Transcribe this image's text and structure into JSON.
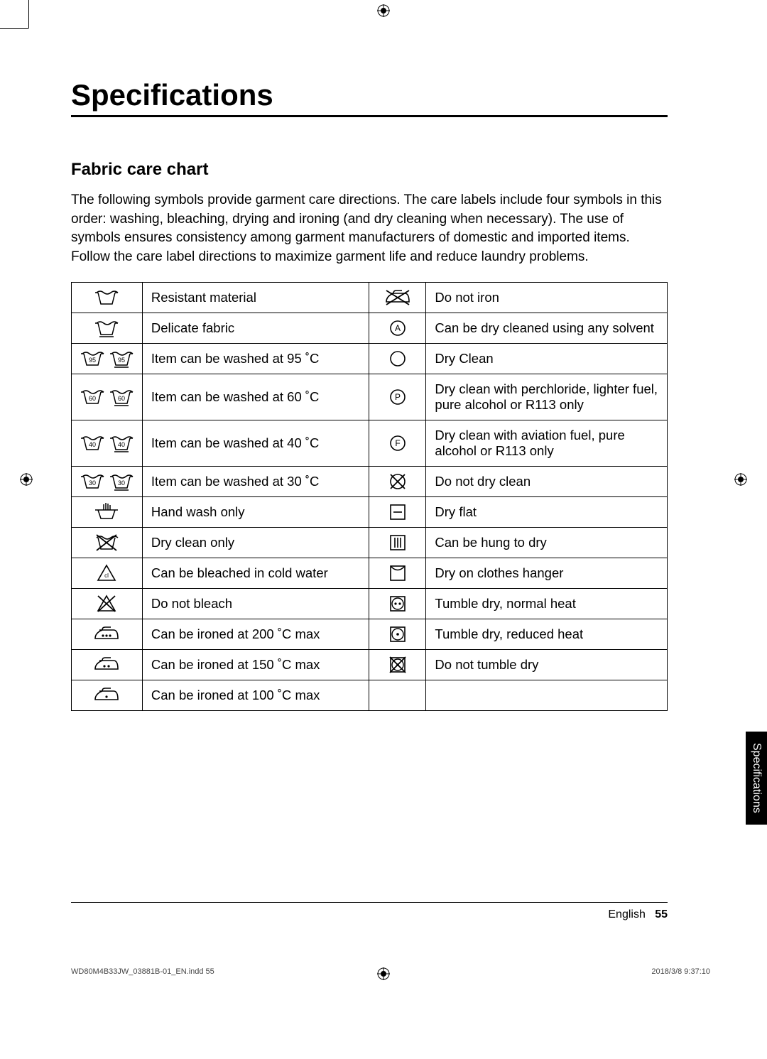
{
  "page_title": "Specifications",
  "section_title": "Fabric care chart",
  "intro": "The following symbols provide garment care directions. The care labels include four symbols in this order: washing, bleaching, drying and ironing (and dry cleaning when necessary). The use of symbols ensures consistency among garment manufacturers of domestic and imported items. Follow the care label directions to maximize garment life and reduce laundry problems.",
  "side_tab": "Specifications",
  "footer_lang": "English",
  "footer_page": "55",
  "imprint_file": "WD80M4B33JW_03881B-01_EN.indd   55",
  "imprint_date": "2018/3/8   9:37:10",
  "colors": {
    "text": "#000000",
    "bg": "#ffffff",
    "tab_bg": "#000000",
    "tab_fg": "#ffffff"
  },
  "fonts": {
    "h1_size": 42,
    "h2_size": 24,
    "body_size": 19,
    "table_size": 18.5,
    "footer_size": 16,
    "micro_size": 11
  },
  "rows": [
    {
      "left_icon": "wash-tub",
      "left": "Resistant material",
      "right_icon": "iron-crossed",
      "right": "Do not iron"
    },
    {
      "left_icon": "wash-tub-bar",
      "left": "Delicate fabric",
      "right_icon": "circle-A",
      "right": "Can be dry cleaned using any solvent"
    },
    {
      "left_icon": "wash-95-double",
      "left": "Item can be washed at 95 ˚C",
      "right_icon": "circle-empty",
      "right": "Dry Clean"
    },
    {
      "left_icon": "wash-60-double",
      "left": "Item can be washed at 60 ˚C",
      "right_icon": "circle-P",
      "right": "Dry clean with perchloride, lighter fuel, pure alcohol or R113 only"
    },
    {
      "left_icon": "wash-40-double",
      "left": "Item can be washed at 40 ˚C",
      "right_icon": "circle-F",
      "right": "Dry clean with aviation fuel, pure alcohol or R113 only"
    },
    {
      "left_icon": "wash-30-double",
      "left": "Item can be washed at 30 ˚C",
      "right_icon": "circle-crossed",
      "right": "Do not dry clean"
    },
    {
      "left_icon": "hand-wash",
      "left": "Hand wash only",
      "right_icon": "square-dash",
      "right": "Dry flat"
    },
    {
      "left_icon": "tub-crossed",
      "left": "Dry clean only",
      "right_icon": "square-3bars",
      "right": "Can be hung to dry"
    },
    {
      "left_icon": "triangle-cl",
      "left": "Can be bleached in cold water",
      "right_icon": "envelope",
      "right": "Dry on clothes hanger"
    },
    {
      "left_icon": "triangle-crossed",
      "left": "Do not bleach",
      "right_icon": "square-2dots",
      "right": "Tumble dry, normal heat"
    },
    {
      "left_icon": "iron-3dots",
      "left": "Can be ironed at 200 ˚C max",
      "right_icon": "square-1dot",
      "right": "Tumble dry, reduced heat"
    },
    {
      "left_icon": "iron-2dots",
      "left": "Can be ironed at 150 ˚C max",
      "right_icon": "square-dot-x",
      "right": "Do not tumble dry"
    },
    {
      "left_icon": "iron-1dot",
      "left": "Can be ironed at 100 ˚C max",
      "right_icon": "",
      "right": ""
    }
  ]
}
